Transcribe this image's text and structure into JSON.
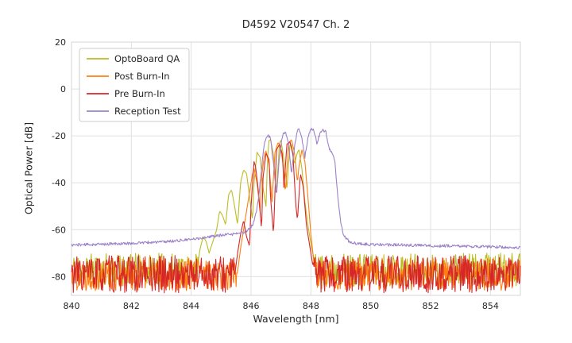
{
  "chart_data": {
    "type": "line",
    "title": "D4592 V20547 Ch. 2",
    "xlabel": "Wavelength [nm]",
    "ylabel": "Optical Power [dB]",
    "xlim": [
      840,
      855
    ],
    "ylim": [
      -88,
      20
    ],
    "xticks": [
      840,
      842,
      844,
      846,
      848,
      850,
      852,
      854
    ],
    "yticks": [
      20,
      0,
      -20,
      -40,
      -60,
      -80
    ],
    "grid": true,
    "grid_color": "#e0e0e0",
    "legend_position": "upper left",
    "sample_step_nm": 0.02,
    "series": [
      {
        "name": "OptoBoard QA",
        "color": "#bcbd22",
        "noise": {
          "mean": -77,
          "amp": 7,
          "seed": 11
        },
        "points": [
          [
            844.2,
            -76
          ],
          [
            844.3,
            -68
          ],
          [
            844.4,
            -63
          ],
          [
            844.5,
            -65
          ],
          [
            844.6,
            -70
          ],
          [
            844.75,
            -64
          ],
          [
            844.85,
            -60
          ],
          [
            844.95,
            -52
          ],
          [
            845.05,
            -54
          ],
          [
            845.15,
            -58
          ],
          [
            845.25,
            -45
          ],
          [
            845.35,
            -43
          ],
          [
            845.45,
            -50
          ],
          [
            845.55,
            -58
          ],
          [
            845.65,
            -40
          ],
          [
            845.75,
            -34.5
          ],
          [
            845.85,
            -36
          ],
          [
            845.95,
            -46
          ],
          [
            846.05,
            -56
          ],
          [
            846.1,
            -40
          ],
          [
            846.2,
            -27
          ],
          [
            846.3,
            -29
          ],
          [
            846.4,
            -42
          ],
          [
            846.5,
            -50
          ],
          [
            846.55,
            -30
          ],
          [
            846.6,
            -22
          ],
          [
            846.65,
            -21.5
          ],
          [
            846.75,
            -28
          ],
          [
            846.85,
            -44
          ],
          [
            846.95,
            -23
          ],
          [
            847.0,
            -22
          ],
          [
            847.1,
            -30
          ],
          [
            847.2,
            -42
          ],
          [
            847.3,
            -24
          ],
          [
            847.35,
            -23.5
          ],
          [
            847.45,
            -32
          ],
          [
            847.55,
            -27
          ],
          [
            847.6,
            -26
          ],
          [
            847.7,
            -34
          ],
          [
            847.8,
            -48
          ],
          [
            847.9,
            -58
          ],
          [
            848.0,
            -66
          ],
          [
            848.1,
            -72
          ],
          [
            848.2,
            -78
          ]
        ]
      },
      {
        "name": "Post Burn-In",
        "color": "#ff7f0e",
        "noise": {
          "mean": -79,
          "amp": 7,
          "seed": 22
        },
        "points": [
          [
            845.55,
            -78
          ],
          [
            845.65,
            -68
          ],
          [
            845.75,
            -60
          ],
          [
            845.85,
            -52
          ],
          [
            845.95,
            -44
          ],
          [
            846.05,
            -36
          ],
          [
            846.1,
            -34
          ],
          [
            846.2,
            -40
          ],
          [
            846.3,
            -52
          ],
          [
            846.35,
            -38
          ],
          [
            846.45,
            -27.5
          ],
          [
            846.5,
            -26.5
          ],
          [
            846.6,
            -32
          ],
          [
            846.7,
            -48
          ],
          [
            846.8,
            -27
          ],
          [
            846.9,
            -23
          ],
          [
            846.95,
            -23.5
          ],
          [
            847.05,
            -30
          ],
          [
            847.15,
            -44
          ],
          [
            847.25,
            -23.5
          ],
          [
            847.35,
            -21.5
          ],
          [
            847.45,
            -27
          ],
          [
            847.55,
            -40
          ],
          [
            847.6,
            -33
          ],
          [
            847.7,
            -26
          ],
          [
            847.8,
            -31
          ],
          [
            847.9,
            -46
          ],
          [
            848.0,
            -62
          ],
          [
            848.1,
            -74
          ],
          [
            848.2,
            -82
          ]
        ]
      },
      {
        "name": "Pre Burn-In",
        "color": "#d62728",
        "noise": {
          "mean": -79,
          "amp": 8,
          "seed": 33
        },
        "points": [
          [
            845.45,
            -80
          ],
          [
            845.55,
            -70
          ],
          [
            845.65,
            -62
          ],
          [
            845.75,
            -56
          ],
          [
            845.85,
            -63
          ],
          [
            845.95,
            -67
          ],
          [
            846.0,
            -50
          ],
          [
            846.1,
            -31
          ],
          [
            846.15,
            -33
          ],
          [
            846.25,
            -44
          ],
          [
            846.35,
            -60
          ],
          [
            846.4,
            -38
          ],
          [
            846.5,
            -27.5
          ],
          [
            846.6,
            -30
          ],
          [
            846.65,
            -46
          ],
          [
            846.75,
            -62
          ],
          [
            846.85,
            -26
          ],
          [
            846.95,
            -23.5
          ],
          [
            847.05,
            -28
          ],
          [
            847.1,
            -42
          ],
          [
            847.2,
            -23.5
          ],
          [
            847.3,
            -22.5
          ],
          [
            847.4,
            -28
          ],
          [
            847.5,
            -50
          ],
          [
            847.55,
            -56
          ],
          [
            847.65,
            -36
          ],
          [
            847.75,
            -42
          ],
          [
            847.85,
            -58
          ],
          [
            847.95,
            -66
          ],
          [
            848.05,
            -74
          ],
          [
            848.15,
            -82
          ]
        ]
      },
      {
        "name": "Reception Test",
        "color": "#9c82c8",
        "noise": {
          "amp": 0.6,
          "seed": 44
        },
        "points": [
          [
            840,
            -66.5
          ],
          [
            841,
            -66.2
          ],
          [
            842,
            -65.8
          ],
          [
            843,
            -65.2
          ],
          [
            844,
            -64.2
          ],
          [
            844.5,
            -63.2
          ],
          [
            845,
            -62.4
          ],
          [
            845.4,
            -61.9
          ],
          [
            845.7,
            -61.3
          ],
          [
            845.9,
            -60.2
          ],
          [
            846.05,
            -58
          ],
          [
            846.15,
            -54
          ],
          [
            846.25,
            -47
          ],
          [
            846.35,
            -34
          ],
          [
            846.45,
            -23
          ],
          [
            846.55,
            -19.5
          ],
          [
            846.65,
            -21
          ],
          [
            846.75,
            -32
          ],
          [
            846.85,
            -45
          ],
          [
            846.95,
            -29
          ],
          [
            847.05,
            -19.5
          ],
          [
            847.15,
            -18.5
          ],
          [
            847.25,
            -23
          ],
          [
            847.35,
            -36
          ],
          [
            847.45,
            -25
          ],
          [
            847.55,
            -17.5
          ],
          [
            847.6,
            -17.2
          ],
          [
            847.7,
            -21
          ],
          [
            847.8,
            -29
          ],
          [
            847.9,
            -21
          ],
          [
            848.0,
            -17
          ],
          [
            848.1,
            -17.5
          ],
          [
            848.2,
            -23
          ],
          [
            848.3,
            -19
          ],
          [
            848.4,
            -17.3
          ],
          [
            848.5,
            -18.5
          ],
          [
            848.6,
            -25
          ],
          [
            848.7,
            -27
          ],
          [
            848.8,
            -31
          ],
          [
            848.9,
            -46
          ],
          [
            849.0,
            -57
          ],
          [
            849.1,
            -62.5
          ],
          [
            849.3,
            -65.3
          ],
          [
            849.6,
            -66
          ],
          [
            850,
            -66.3
          ],
          [
            851,
            -66.5
          ],
          [
            852,
            -66.8
          ],
          [
            853,
            -67
          ],
          [
            854,
            -67.3
          ],
          [
            855,
            -67.6
          ]
        ]
      }
    ]
  }
}
